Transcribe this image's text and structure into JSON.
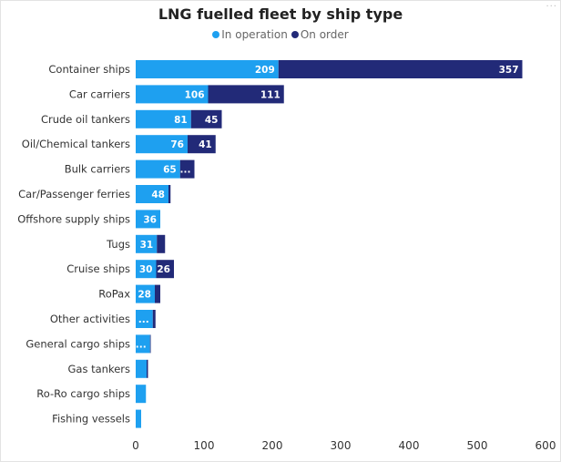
{
  "colors": {
    "in_operation": "#1ea0f0",
    "on_order": "#222a78",
    "axis_text": "#333333",
    "label_text": "#ffffff"
  },
  "header": {
    "more_options": "···"
  },
  "chart_data": {
    "type": "bar",
    "orientation": "horizontal",
    "stacked": true,
    "title": "LNG fuelled fleet by ship type",
    "legend": {
      "position": "top-center",
      "items": [
        "In operation",
        "On order"
      ]
    },
    "xlim": [
      0,
      600
    ],
    "xticks": [
      0,
      100,
      200,
      300,
      400,
      500,
      600
    ],
    "grid": false,
    "categories": [
      "Container ships",
      "Car carriers",
      "Crude oil tankers",
      "Oil/Chemical tankers",
      "Bulk carriers",
      "Car/Passenger ferries",
      "Offshore supply ships",
      "Tugs",
      "Cruise ships",
      "RoPax",
      "Other activities",
      "General cargo ships",
      "Gas tankers",
      "Ro-Ro cargo ships",
      "Fishing vessels"
    ],
    "series": [
      {
        "name": "In operation",
        "values": [
          209,
          106,
          81,
          76,
          65,
          48,
          36,
          31,
          30,
          28,
          25,
          21,
          16,
          15,
          8
        ],
        "labels": [
          "209",
          "106",
          "81",
          "76",
          "65",
          "48",
          "36",
          "31",
          "30",
          "28",
          "...",
          "...",
          "",
          "",
          ""
        ]
      },
      {
        "name": "On order",
        "values": [
          357,
          111,
          45,
          41,
          21,
          3,
          0,
          12,
          26,
          8,
          4,
          1,
          2,
          0,
          0
        ],
        "labels": [
          "357",
          "111",
          "45",
          "41",
          "...",
          "",
          "",
          "",
          "26",
          "",
          "",
          "",
          "",
          "",
          ""
        ]
      }
    ]
  }
}
